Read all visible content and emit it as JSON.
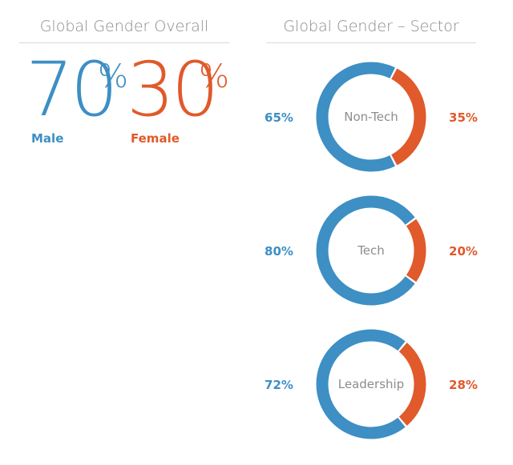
{
  "colors": {
    "male": "#3d8fc4",
    "female": "#e05a2b"
  },
  "overall": {
    "title": "Global Gender Overall",
    "male_value": "70",
    "male_label": "Male",
    "female_value": "30",
    "female_label": "Female",
    "percent_symbol": "%"
  },
  "sector": {
    "title": "Global Gender – Sector"
  },
  "chart_data": [
    {
      "type": "pie",
      "title": "Global Gender Overall",
      "categories": [
        "Male",
        "Female"
      ],
      "values": [
        70,
        30
      ]
    },
    {
      "type": "pie",
      "title": "Non-Tech",
      "categories": [
        "Male",
        "Female"
      ],
      "values": [
        65,
        35
      ],
      "male_text": "65%",
      "female_text": "35%"
    },
    {
      "type": "pie",
      "title": "Tech",
      "categories": [
        "Male",
        "Female"
      ],
      "values": [
        80,
        20
      ],
      "male_text": "80%",
      "female_text": "20%"
    },
    {
      "type": "pie",
      "title": "Leadership",
      "categories": [
        "Male",
        "Female"
      ],
      "values": [
        72,
        28
      ],
      "male_text": "72%",
      "female_text": "28%"
    }
  ]
}
